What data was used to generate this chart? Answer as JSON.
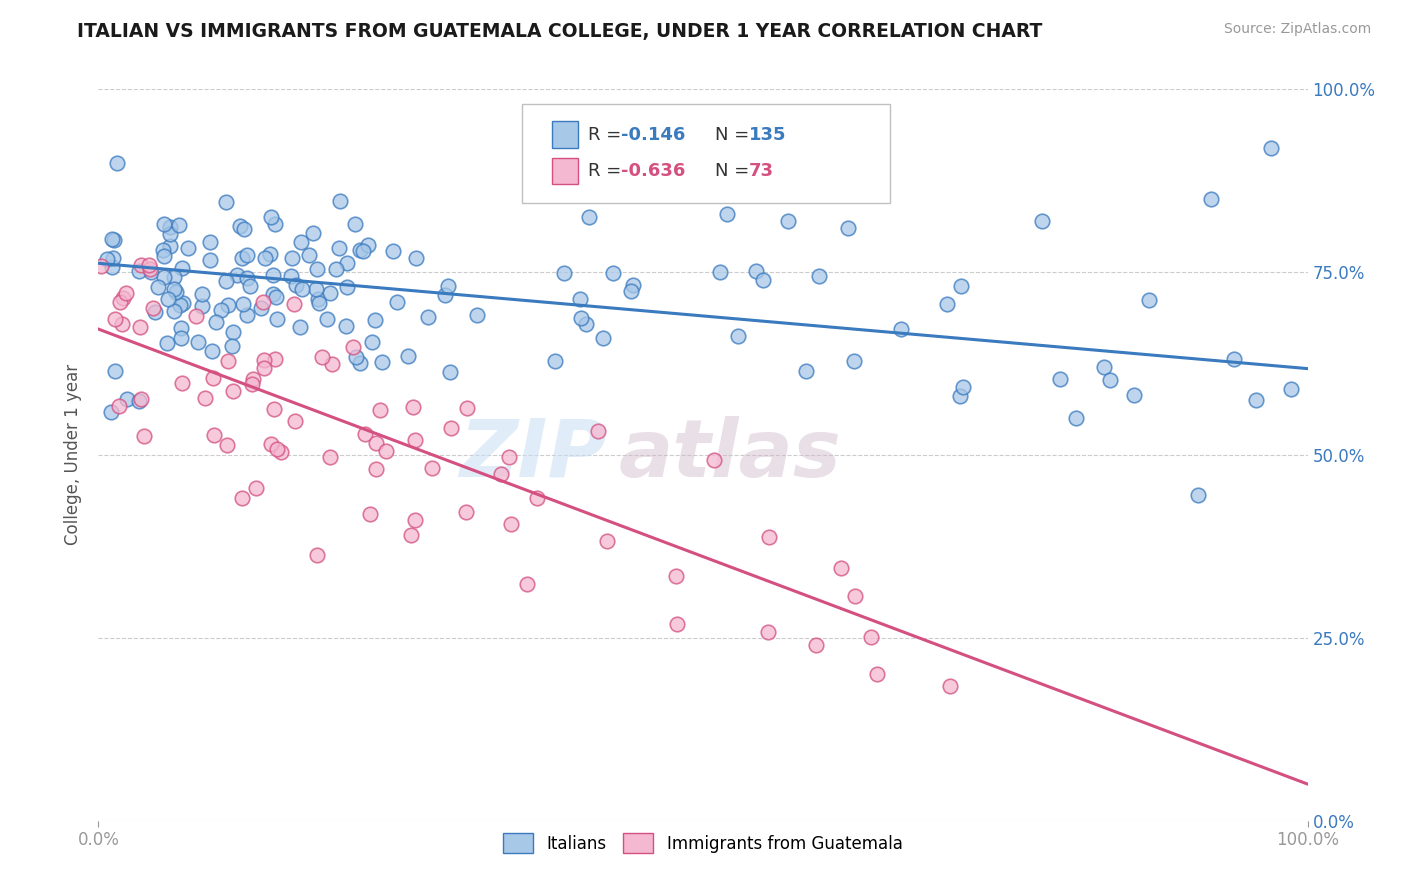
{
  "title": "ITALIAN VS IMMIGRANTS FROM GUATEMALA COLLEGE, UNDER 1 YEAR CORRELATION CHART",
  "source": "Source: ZipAtlas.com",
  "ylabel": "College, Under 1 year",
  "xlim": [
    0.0,
    1.0
  ],
  "ylim": [
    0.0,
    1.0
  ],
  "ytick_labels": [
    "0.0%",
    "25.0%",
    "50.0%",
    "75.0%",
    "100.0%"
  ],
  "ytick_positions": [
    0.0,
    0.25,
    0.5,
    0.75,
    1.0
  ],
  "italian_color": "#a8c8e8",
  "guatemalan_color": "#f4b8d0",
  "italian_line_color": "#3a7abf",
  "guatemalan_line_color": "#d45080",
  "R_italian": -0.146,
  "N_italian": 135,
  "R_guatemalan": -0.636,
  "N_guatemalan": 73,
  "italian_trendline": {
    "x": [
      0.0,
      1.0
    ],
    "y": [
      0.762,
      0.618
    ]
  },
  "guatemalan_trendline": {
    "x": [
      0.0,
      1.0
    ],
    "y": [
      0.672,
      0.05
    ]
  },
  "watermark_text": "ZIPatlas",
  "watermark_color": "#dce8f5",
  "legend_label_italian": "Italians",
  "legend_label_guatemalan": "Immigrants from Guatemala"
}
